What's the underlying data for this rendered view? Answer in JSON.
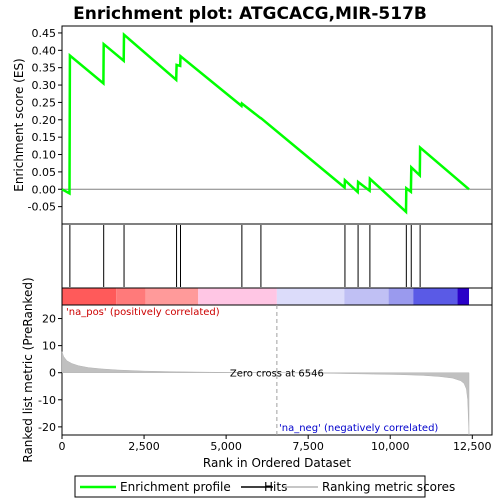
{
  "chart_data": {
    "type": "line",
    "title": "Enrichment plot: ATGCACG,MIR-517B",
    "xlabel": "Rank in Ordered Dataset",
    "upper_panel": {
      "ylabel": "Enrichment score (ES)",
      "ylim": [
        -0.1,
        0.47
      ],
      "yticks": [
        "0.45",
        "0.40",
        "0.35",
        "0.30",
        "0.25",
        "0.20",
        "0.15",
        "0.10",
        "0.05",
        "0.00",
        "-0.05"
      ],
      "ytick_values": [
        0.45,
        0.4,
        0.35,
        0.3,
        0.25,
        0.2,
        0.15,
        0.1,
        0.05,
        0.0,
        -0.05
      ],
      "series": [
        {
          "name": "Enrichment profile",
          "color": "#00ff00",
          "x": [
            0,
            230,
            240,
            1260,
            1270,
            1880,
            1890,
            3480,
            3490,
            3600,
            3610,
            5470,
            5480,
            6050,
            6060,
            8610,
            8620,
            9010,
            9020,
            9370,
            9380,
            10480,
            10490,
            10630,
            10640,
            10900,
            10910,
            12400
          ],
          "y": [
            0.0,
            -0.012,
            0.385,
            0.305,
            0.418,
            0.37,
            0.445,
            0.315,
            0.358,
            0.355,
            0.383,
            0.24,
            0.247,
            0.205,
            0.205,
            0.005,
            0.026,
            -0.008,
            0.021,
            -0.004,
            0.03,
            -0.065,
            0.003,
            -0.007,
            0.063,
            0.04,
            0.12,
            0.0
          ]
        }
      ]
    },
    "hits": [
      240,
      1270,
      1890,
      3490,
      3610,
      5480,
      6060,
      8620,
      9020,
      9380,
      10490,
      10640,
      10910
    ],
    "heat_bar": {
      "segments": [
        {
          "from": 0,
          "to": 1650,
          "color": "#ff5a5a"
        },
        {
          "from": 1650,
          "to": 2550,
          "color": "#ff7a7a"
        },
        {
          "from": 2550,
          "to": 4150,
          "color": "#ff9a9a"
        },
        {
          "from": 4150,
          "to": 6546,
          "color": "#ffc6e4"
        },
        {
          "from": 6546,
          "to": 8600,
          "color": "#dcdcfa"
        },
        {
          "from": 8600,
          "to": 9950,
          "color": "#c0c0f4"
        },
        {
          "from": 9950,
          "to": 10700,
          "color": "#9a9aee"
        },
        {
          "from": 10700,
          "to": 12050,
          "color": "#5a5ae6"
        },
        {
          "from": 12050,
          "to": 12400,
          "color": "#2a00c8"
        }
      ]
    },
    "lower_panel": {
      "ylabel": "Ranked list metric (PreRanked)",
      "ylim": [
        -23,
        25
      ],
      "yticks": [
        "20",
        "10",
        "0",
        "-10",
        "-20"
      ],
      "ytick_values": [
        20,
        10,
        0,
        -10,
        -20
      ],
      "series": [
        {
          "name": "Ranking metric scores",
          "color": "#b4b4b4",
          "x": [
            0,
            50,
            150,
            300,
            500,
            800,
            1200,
            1700,
            2500,
            3500,
            4500,
            5500,
            6546,
            7500,
            8500,
            9500,
            10300,
            11000,
            11500,
            11900,
            12150,
            12250,
            12320,
            12360,
            12400
          ],
          "y": [
            7.8,
            6.0,
            4.4,
            3.4,
            2.6,
            1.9,
            1.4,
            1.0,
            0.6,
            0.35,
            0.2,
            0.08,
            0.0,
            -0.12,
            -0.3,
            -0.5,
            -0.7,
            -1.0,
            -1.4,
            -2.0,
            -3.0,
            -4.0,
            -6.0,
            -10.0,
            -23.0
          ]
        }
      ],
      "pos_label": "'na_pos' (positively correlated)",
      "neg_label": "'na_neg' (negatively correlated)",
      "zero_cross_label": "Zero cross at 6546",
      "zero_cross": 6546
    },
    "xlim": [
      0,
      13100
    ],
    "xticks": [
      "0",
      "2,500",
      "5,000",
      "7,500",
      "10,000",
      "12,500"
    ],
    "xtick_values": [
      0,
      2500,
      5000,
      7500,
      10000,
      12500
    ],
    "legend": {
      "placement": "bottom",
      "items": [
        {
          "label": "Enrichment profile",
          "color": "#00ff00"
        },
        {
          "label": "Hits",
          "color": "#000000"
        },
        {
          "label": "Ranking metric scores",
          "color": "#b4b4b4"
        }
      ]
    },
    "colors": {
      "pos_label": "#cc0000",
      "neg_label": "#0000cc"
    }
  }
}
